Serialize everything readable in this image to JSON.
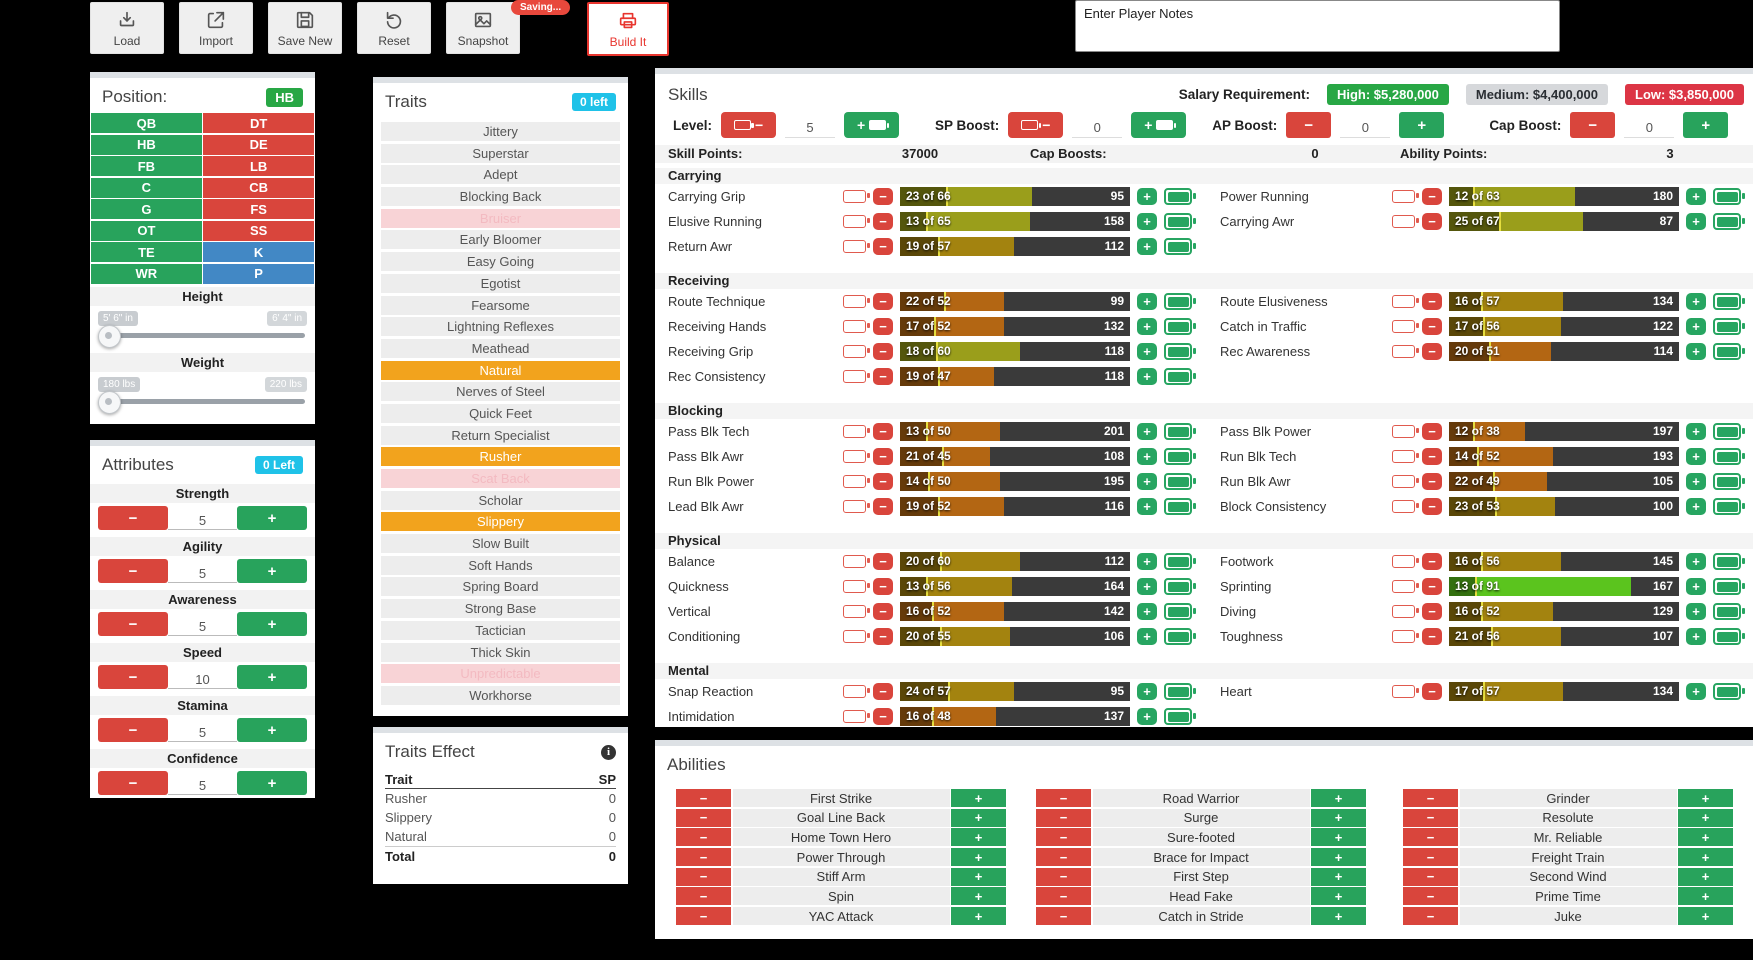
{
  "toolbar": {
    "saving_badge": "Saving...",
    "buttons": [
      {
        "id": "load",
        "label": "Load",
        "icon": "download-icon"
      },
      {
        "id": "import",
        "label": "Import",
        "icon": "export-icon"
      },
      {
        "id": "save-new",
        "label": "Save New",
        "icon": "save-icon"
      },
      {
        "id": "reset",
        "label": "Reset",
        "icon": "reset-icon"
      },
      {
        "id": "snapshot",
        "label": "Snapshot",
        "icon": "snapshot-icon"
      },
      {
        "id": "build-it",
        "label": "Build It",
        "icon": "printer-icon",
        "accent": true
      }
    ]
  },
  "notes": {
    "placeholder": "Enter Player Notes"
  },
  "position_panel": {
    "title": "Position:",
    "selected": "HB",
    "cells": [
      {
        "label": "QB",
        "color": "green"
      },
      {
        "label": "DT",
        "color": "red"
      },
      {
        "label": "HB",
        "color": "green"
      },
      {
        "label": "DE",
        "color": "red"
      },
      {
        "label": "FB",
        "color": "green"
      },
      {
        "label": "LB",
        "color": "red"
      },
      {
        "label": "C",
        "color": "green"
      },
      {
        "label": "CB",
        "color": "red"
      },
      {
        "label": "G",
        "color": "green"
      },
      {
        "label": "FS",
        "color": "red"
      },
      {
        "label": "OT",
        "color": "green"
      },
      {
        "label": "SS",
        "color": "red"
      },
      {
        "label": "TE",
        "color": "green"
      },
      {
        "label": "K",
        "color": "blue"
      },
      {
        "label": "WR",
        "color": "green"
      },
      {
        "label": "P",
        "color": "blue"
      }
    ],
    "sliders": [
      {
        "label": "Height",
        "min": "5' 6\" in",
        "max": "6' 4\" in"
      },
      {
        "label": "Weight",
        "min": "180 lbs",
        "max": "220 lbs"
      }
    ]
  },
  "attributes_panel": {
    "title": "Attributes",
    "badge": "0 Left",
    "rows": [
      {
        "name": "Strength",
        "value": "5"
      },
      {
        "name": "Agility",
        "value": "5"
      },
      {
        "name": "Awareness",
        "value": "5"
      },
      {
        "name": "Speed",
        "value": "10"
      },
      {
        "name": "Stamina",
        "value": "5"
      },
      {
        "name": "Confidence",
        "value": "5"
      }
    ]
  },
  "traits_panel": {
    "title": "Traits",
    "badge": "0 left",
    "items": [
      {
        "name": "Jittery",
        "state": "normal"
      },
      {
        "name": "Superstar",
        "state": "normal"
      },
      {
        "name": "Adept",
        "state": "normal"
      },
      {
        "name": "Blocking Back",
        "state": "normal"
      },
      {
        "name": "Bruiser",
        "state": "disabled"
      },
      {
        "name": "Early Bloomer",
        "state": "normal"
      },
      {
        "name": "Easy Going",
        "state": "normal"
      },
      {
        "name": "Egotist",
        "state": "normal"
      },
      {
        "name": "Fearsome",
        "state": "normal"
      },
      {
        "name": "Lightning Reflexes",
        "state": "normal"
      },
      {
        "name": "Meathead",
        "state": "normal"
      },
      {
        "name": "Natural",
        "state": "selected"
      },
      {
        "name": "Nerves of Steel",
        "state": "normal"
      },
      {
        "name": "Quick Feet",
        "state": "normal"
      },
      {
        "name": "Return Specialist",
        "state": "normal"
      },
      {
        "name": "Rusher",
        "state": "selected"
      },
      {
        "name": "Scat Back",
        "state": "disabled"
      },
      {
        "name": "Scholar",
        "state": "normal"
      },
      {
        "name": "Slippery",
        "state": "selected"
      },
      {
        "name": "Slow Built",
        "state": "normal"
      },
      {
        "name": "Soft Hands",
        "state": "normal"
      },
      {
        "name": "Spring Board",
        "state": "normal"
      },
      {
        "name": "Strong Base",
        "state": "normal"
      },
      {
        "name": "Tactician",
        "state": "normal"
      },
      {
        "name": "Thick Skin",
        "state": "normal"
      },
      {
        "name": "Unpredictable",
        "state": "disabled"
      },
      {
        "name": "Workhorse",
        "state": "normal"
      }
    ]
  },
  "traits_effect_panel": {
    "title": "Traits Effect",
    "info_glyph": "i",
    "columns": [
      "Trait",
      "SP"
    ],
    "rows": [
      {
        "trait": "Rusher",
        "sp": "0"
      },
      {
        "trait": "Slippery",
        "sp": "0"
      },
      {
        "trait": "Natural",
        "sp": "0"
      }
    ],
    "total": {
      "trait": "Total",
      "sp": "0"
    }
  },
  "skills_panel": {
    "title": "Skills",
    "salary": {
      "label": "Salary Requirement:",
      "badges": [
        {
          "text": "High: $5,280,000",
          "tone": "green"
        },
        {
          "text": "Medium: $4,400,000",
          "tone": "gray"
        },
        {
          "text": "Low: $3,850,000",
          "tone": "red"
        }
      ]
    },
    "controls": [
      {
        "label": "Level:",
        "value": "5",
        "style": "battery"
      },
      {
        "label": "SP Boost:",
        "value": "0",
        "style": "battery"
      },
      {
        "label": "AP Boost:",
        "value": "0",
        "style": "plain"
      },
      {
        "label": "Cap Boost:",
        "value": "0",
        "style": "plain"
      }
    ],
    "stats": [
      {
        "label": "Skill Points:",
        "value": "37000"
      },
      {
        "label": "Cap Boosts:",
        "value": "0"
      },
      {
        "label": "Ability Points:",
        "value": "3"
      }
    ],
    "bar_scale_max": 115,
    "groups": [
      {
        "name": "Carrying",
        "left": [
          {
            "name": "Carrying Grip",
            "value": 23,
            "cap": 66,
            "cost": 95,
            "tone": "olive"
          },
          {
            "name": "Elusive Running",
            "value": 13,
            "cap": 65,
            "cost": 158,
            "tone": "olive"
          },
          {
            "name": "Return Awr",
            "value": 19,
            "cap": 57,
            "cost": 112,
            "tone": "gold"
          }
        ],
        "right": [
          {
            "name": "Power Running",
            "value": 12,
            "cap": 63,
            "cost": 180,
            "tone": "olive"
          },
          {
            "name": "Carrying Awr",
            "value": 25,
            "cap": 67,
            "cost": 87,
            "tone": "olive"
          }
        ]
      },
      {
        "name": "Receiving",
        "left": [
          {
            "name": "Route Technique",
            "value": 22,
            "cap": 52,
            "cost": 99,
            "tone": "orange"
          },
          {
            "name": "Receiving Hands",
            "value": 17,
            "cap": 52,
            "cost": 132,
            "tone": "orange"
          },
          {
            "name": "Receiving Grip",
            "value": 18,
            "cap": 60,
            "cost": 118,
            "tone": "olive"
          },
          {
            "name": "Rec Consistency",
            "value": 19,
            "cap": 47,
            "cost": 118,
            "tone": "orange"
          }
        ],
        "right": [
          {
            "name": "Route Elusiveness",
            "value": 16,
            "cap": 57,
            "cost": 134,
            "tone": "gold"
          },
          {
            "name": "Catch in Traffic",
            "value": 17,
            "cap": 56,
            "cost": 122,
            "tone": "gold"
          },
          {
            "name": "Rec Awareness",
            "value": 20,
            "cap": 51,
            "cost": 114,
            "tone": "orange"
          }
        ]
      },
      {
        "name": "Blocking",
        "left": [
          {
            "name": "Pass Blk Tech",
            "value": 13,
            "cap": 50,
            "cost": 201,
            "tone": "orange"
          },
          {
            "name": "Pass Blk Awr",
            "value": 21,
            "cap": 45,
            "cost": 108,
            "tone": "orange"
          },
          {
            "name": "Run Blk Power",
            "value": 14,
            "cap": 50,
            "cost": 195,
            "tone": "orange"
          },
          {
            "name": "Lead Blk Awr",
            "value": 19,
            "cap": 52,
            "cost": 116,
            "tone": "orange"
          }
        ],
        "right": [
          {
            "name": "Pass Blk Power",
            "value": 12,
            "cap": 38,
            "cost": 197,
            "tone": "orange"
          },
          {
            "name": "Run Blk Tech",
            "value": 14,
            "cap": 52,
            "cost": 193,
            "tone": "orange"
          },
          {
            "name": "Run Blk Awr",
            "value": 22,
            "cap": 49,
            "cost": 105,
            "tone": "orange"
          },
          {
            "name": "Block Consistency",
            "value": 23,
            "cap": 53,
            "cost": 100,
            "tone": "gold"
          }
        ]
      },
      {
        "name": "Physical",
        "left": [
          {
            "name": "Balance",
            "value": 20,
            "cap": 60,
            "cost": 112,
            "tone": "gold"
          },
          {
            "name": "Quickness",
            "value": 13,
            "cap": 56,
            "cost": 164,
            "tone": "gold"
          },
          {
            "name": "Vertical",
            "value": 16,
            "cap": 52,
            "cost": 142,
            "tone": "orange"
          },
          {
            "name": "Conditioning",
            "value": 20,
            "cap": 55,
            "cost": 106,
            "tone": "gold"
          }
        ],
        "right": [
          {
            "name": "Footwork",
            "value": 16,
            "cap": 56,
            "cost": 145,
            "tone": "gold"
          },
          {
            "name": "Sprinting",
            "value": 13,
            "cap": 91,
            "cost": 167,
            "tone": "green"
          },
          {
            "name": "Diving",
            "value": 16,
            "cap": 52,
            "cost": 129,
            "tone": "gold"
          },
          {
            "name": "Toughness",
            "value": 21,
            "cap": 56,
            "cost": 107,
            "tone": "gold"
          }
        ]
      },
      {
        "name": "Mental",
        "left": [
          {
            "name": "Snap Reaction",
            "value": 24,
            "cap": 57,
            "cost": 95,
            "tone": "gold"
          },
          {
            "name": "Intimidation",
            "value": 16,
            "cap": 48,
            "cost": 137,
            "tone": "orange"
          }
        ],
        "right": [
          {
            "name": "Heart",
            "value": 17,
            "cap": 57,
            "cost": 134,
            "tone": "gold"
          }
        ]
      }
    ]
  },
  "abilities_panel": {
    "title": "Abilities",
    "columns": [
      [
        "First Strike",
        "Goal Line Back",
        "Home Town Hero",
        "Power Through",
        "Stiff Arm",
        "Spin",
        "YAC Attack"
      ],
      [
        "Road Warrior",
        "Surge",
        "Sure-footed",
        "Brace for Impact",
        "First Step",
        "Head Fake",
        "Catch in Stride"
      ],
      [
        "Grinder",
        "Resolute",
        "Mr. Reliable",
        "Freight Train",
        "Second Wind",
        "Prime Time",
        "Juke"
      ]
    ]
  },
  "colors": {
    "green": "#28a35c",
    "red": "#d9453c",
    "blue": "#4288c5",
    "cyan_badge": "#1fc2e8",
    "hb_badge": "#28a745",
    "trait_selected": "#f2a31d",
    "trait_disabled_bg": "#f8d3d6",
    "salary_green": "#28a745",
    "salary_gray_bg": "#d6d8db",
    "salary_gray_text": "#2a2e33",
    "salary_red": "#dc3545",
    "bar_bg": "#3a3a3a",
    "bar_divider": "#e6de3e",
    "tones": {
      "olive": {
        "main": "#9a9e1b",
        "dark": "#54560c"
      },
      "gold": {
        "main": "#a3830f",
        "dark": "#5a4708"
      },
      "orange": {
        "main": "#b36613",
        "dark": "#653a0a"
      },
      "green": {
        "main": "#5bc41e",
        "dark": "#33700f"
      }
    }
  }
}
